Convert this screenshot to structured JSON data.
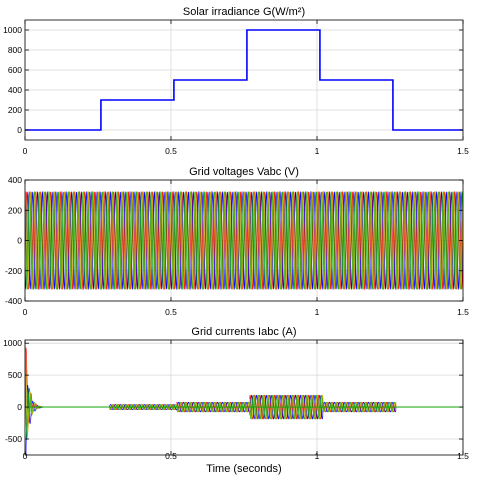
{
  "chart_data": [
    {
      "type": "line",
      "title": "Solar irradiance G(W/m²)",
      "xlabel": "",
      "ylabel": "",
      "xlim": [
        0,
        1.5
      ],
      "ylim": [
        -100,
        1100
      ],
      "xticks": [
        "0",
        "0.5",
        "1",
        "1.5"
      ],
      "yticks": [
        "0",
        "200",
        "400",
        "600",
        "800",
        "1000"
      ],
      "grid": true,
      "series": [
        {
          "color": "#0000ff",
          "x": [
            0,
            0.26,
            0.26,
            0.51,
            0.51,
            0.76,
            0.76,
            1.01,
            1.01,
            1.26,
            1.26,
            1.5
          ],
          "y": [
            0,
            0,
            300,
            300,
            500,
            500,
            1000,
            1000,
            500,
            500,
            0,
            0
          ]
        }
      ]
    },
    {
      "type": "line",
      "title": "Grid voltages  Vabc (V)",
      "xlabel": "",
      "ylabel": "",
      "xlim": [
        0,
        1.5
      ],
      "ylim": [
        -400,
        400
      ],
      "xticks": [
        "0",
        "0.5",
        "1",
        "1.5"
      ],
      "yticks": [
        "-400",
        "-200",
        "0",
        "200",
        "400"
      ],
      "grid": true,
      "signal": {
        "form": "three-phase sine",
        "amplitude": 320,
        "frequency_hz": 60,
        "phase_colors": [
          "#ff0000",
          "#0000ff",
          "#00aa00",
          "#c8b400"
        ]
      }
    },
    {
      "type": "line",
      "title": "Grid currents  Iabc (A)",
      "xlabel": "Time (seconds)",
      "ylabel": "",
      "xlim": [
        0,
        1.5
      ],
      "ylim": [
        -750,
        1050
      ],
      "xticks": [
        "0",
        "0.5",
        "1",
        "1.5"
      ],
      "yticks": [
        "-500",
        "0",
        "500",
        "1000"
      ],
      "grid": true,
      "signal": {
        "form": "three-phase sine envelope",
        "frequency_hz": 60,
        "phase_colors": [
          "#ff0000",
          "#0000ff",
          "#00aa00",
          "#c8b400"
        ],
        "startup_transient_peak": 950,
        "segments": [
          {
            "t_start": 0,
            "t_end": 0.26,
            "amplitude": 0
          },
          {
            "t_start": 0.29,
            "t_end": 0.52,
            "amplitude": 40
          },
          {
            "t_start": 0.52,
            "t_end": 0.77,
            "amplitude": 75
          },
          {
            "t_start": 0.77,
            "t_end": 1.02,
            "amplitude": 185
          },
          {
            "t_start": 1.02,
            "t_end": 1.27,
            "amplitude": 75
          },
          {
            "t_start": 1.27,
            "t_end": 1.5,
            "amplitude": 0
          }
        ]
      }
    }
  ]
}
